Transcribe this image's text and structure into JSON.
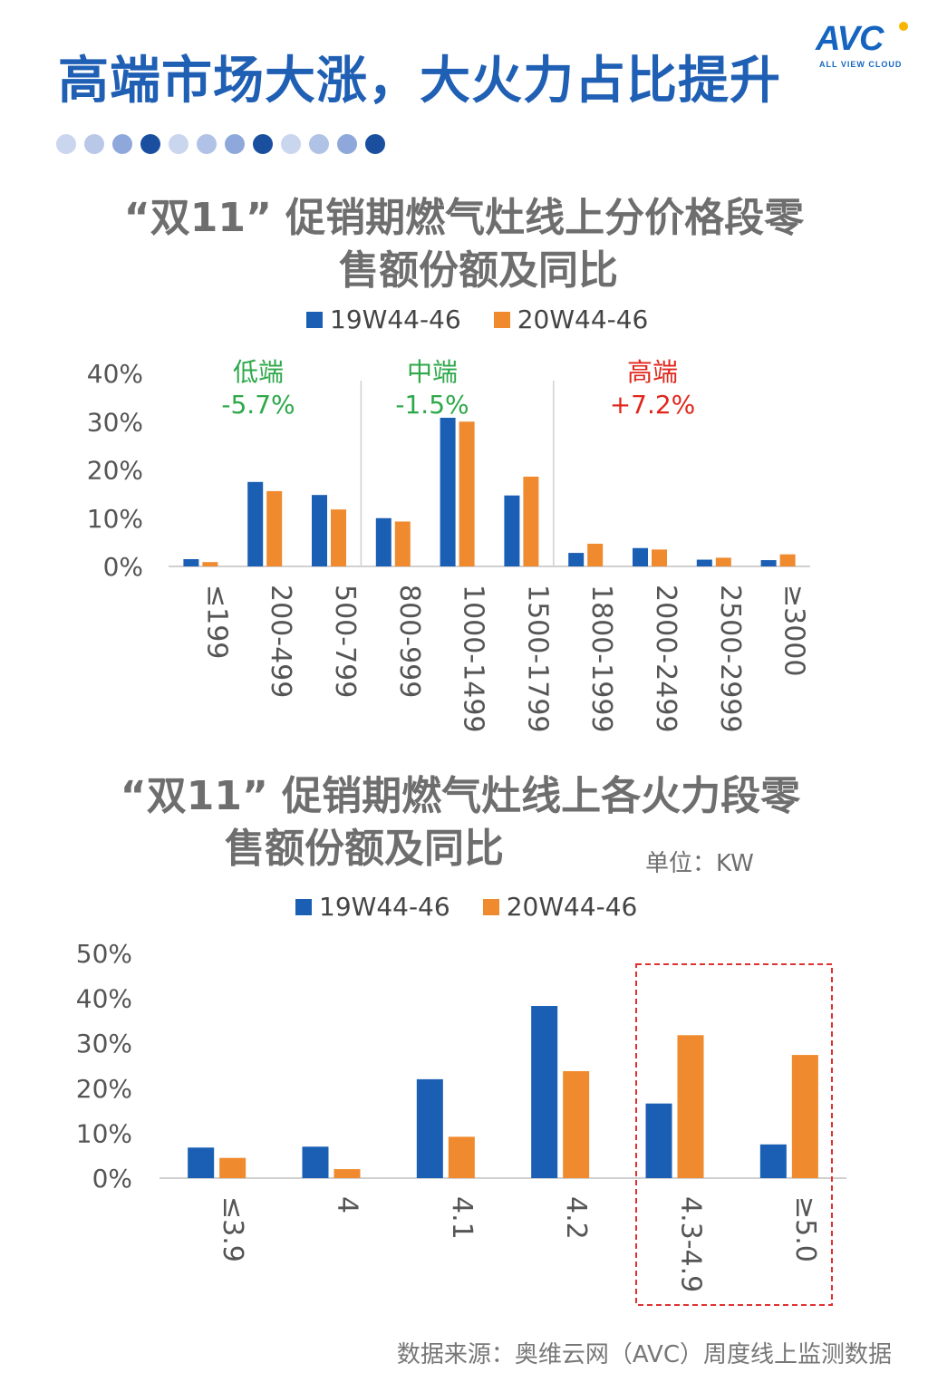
{
  "header": {
    "title": "高端市场大涨，大火力占比提升",
    "logo_text": "AVC",
    "logo_sub": "ALL VIEW CLOUD",
    "dot_colors": [
      "#c9d6ee",
      "#b9c8e8",
      "#8fa8db",
      "#1a4fa0",
      "#c9d6ee",
      "#b0c2e6",
      "#8fa8db",
      "#1a4fa0",
      "#c9d6ee",
      "#b0c2e6",
      "#8fa8db",
      "#1a4fa0"
    ]
  },
  "colors": {
    "series1": "#1a5fb4",
    "series2": "#f08a2e",
    "axis": "#d0d0d0",
    "tick": "#555555",
    "green": "#2ea84a",
    "red": "#e0261c",
    "highlight_box": "#e03030"
  },
  "chart1": {
    "title_line1": "“双11” 促销期燃气灶线上分价格段零",
    "title_line2": "售额份额及同比"
  },
  "chart2": {
    "title_line1": "“双11” 促销期燃气灶线上各火力段零",
    "title_line2": "售额份额及同比",
    "unit": "单位：KW"
  },
  "chart_data": [
    {
      "type": "bar",
      "categories": [
        "≤199",
        "200-499",
        "500-799",
        "800-999",
        "1000-1499",
        "1500-1799",
        "1800-1999",
        "2000-2499",
        "2500-2999",
        "≥3000"
      ],
      "series": [
        {
          "name": "19W44-46",
          "values": [
            1.5,
            17.5,
            14.8,
            10.0,
            30.8,
            14.7,
            2.8,
            3.8,
            1.4,
            1.3
          ]
        },
        {
          "name": "20W44-46",
          "values": [
            0.9,
            15.6,
            11.8,
            9.3,
            30.0,
            18.6,
            4.7,
            3.5,
            1.8,
            2.5
          ]
        }
      ],
      "yticks": [
        "0%",
        "10%",
        "20%",
        "30%",
        "40%"
      ],
      "ylim": [
        0,
        40
      ],
      "annotations": [
        {
          "label": "低端",
          "value": "-5.7%",
          "color": "green"
        },
        {
          "label": "中端",
          "value": "-1.5%",
          "color": "green"
        },
        {
          "label": "高端",
          "value": "+7.2%",
          "color": "red"
        }
      ]
    },
    {
      "type": "bar",
      "categories": [
        "≤3.9",
        "4",
        "4.1",
        "4.2",
        "4.3-4.9",
        "≥5.0"
      ],
      "series": [
        {
          "name": "19W44-46",
          "values": [
            6.8,
            7.0,
            22.0,
            38.3,
            16.6,
            7.5
          ]
        },
        {
          "name": "20W44-46",
          "values": [
            4.5,
            2.0,
            9.2,
            23.8,
            31.8,
            27.4
          ]
        }
      ],
      "yticks": [
        "0%",
        "10%",
        "20%",
        "30%",
        "40%",
        "50%"
      ],
      "ylim": [
        0,
        50
      ]
    }
  ],
  "source": "数据来源：奥维云网（AVC）周度线上监测数据"
}
